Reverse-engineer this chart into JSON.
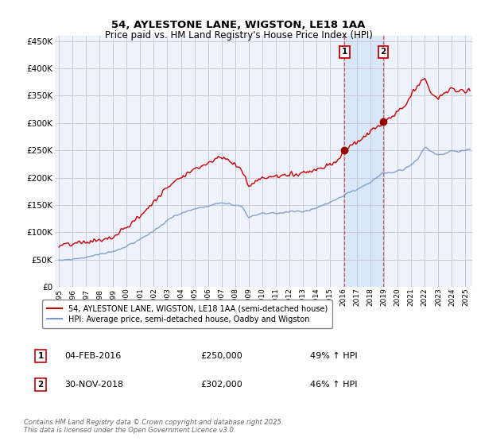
{
  "title": "54, AYLESTONE LANE, WIGSTON, LE18 1AA",
  "subtitle": "Price paid vs. HM Land Registry's House Price Index (HPI)",
  "ylim": [
    0,
    460000
  ],
  "yticks": [
    0,
    50000,
    100000,
    150000,
    200000,
    250000,
    300000,
    350000,
    400000,
    450000
  ],
  "xlim_start": 1994.7,
  "xlim_end": 2025.5,
  "background_color": "#ffffff",
  "plot_background": "#eef2fb",
  "grid_color": "#c8c8d8",
  "red_color": "#cc0000",
  "blue_color": "#7799cc",
  "highlight_fill": "#d8e8f8",
  "t1_x": 2016.08,
  "t2_x": 2018.92,
  "legend_red": "54, AYLESTONE LANE, WIGSTON, LE18 1AA (semi-detached house)",
  "legend_blue": "HPI: Average price, semi-detached house, Oadby and Wigston",
  "table_rows": [
    {
      "num": "1",
      "date": "04-FEB-2016",
      "price": "£250,000",
      "hpi": "49% ↑ HPI"
    },
    {
      "num": "2",
      "date": "30-NOV-2018",
      "price": "£302,000",
      "hpi": "46% ↑ HPI"
    }
  ],
  "footer": "Contains HM Land Registry data © Crown copyright and database right 2025.\nThis data is licensed under the Open Government Licence v3.0."
}
